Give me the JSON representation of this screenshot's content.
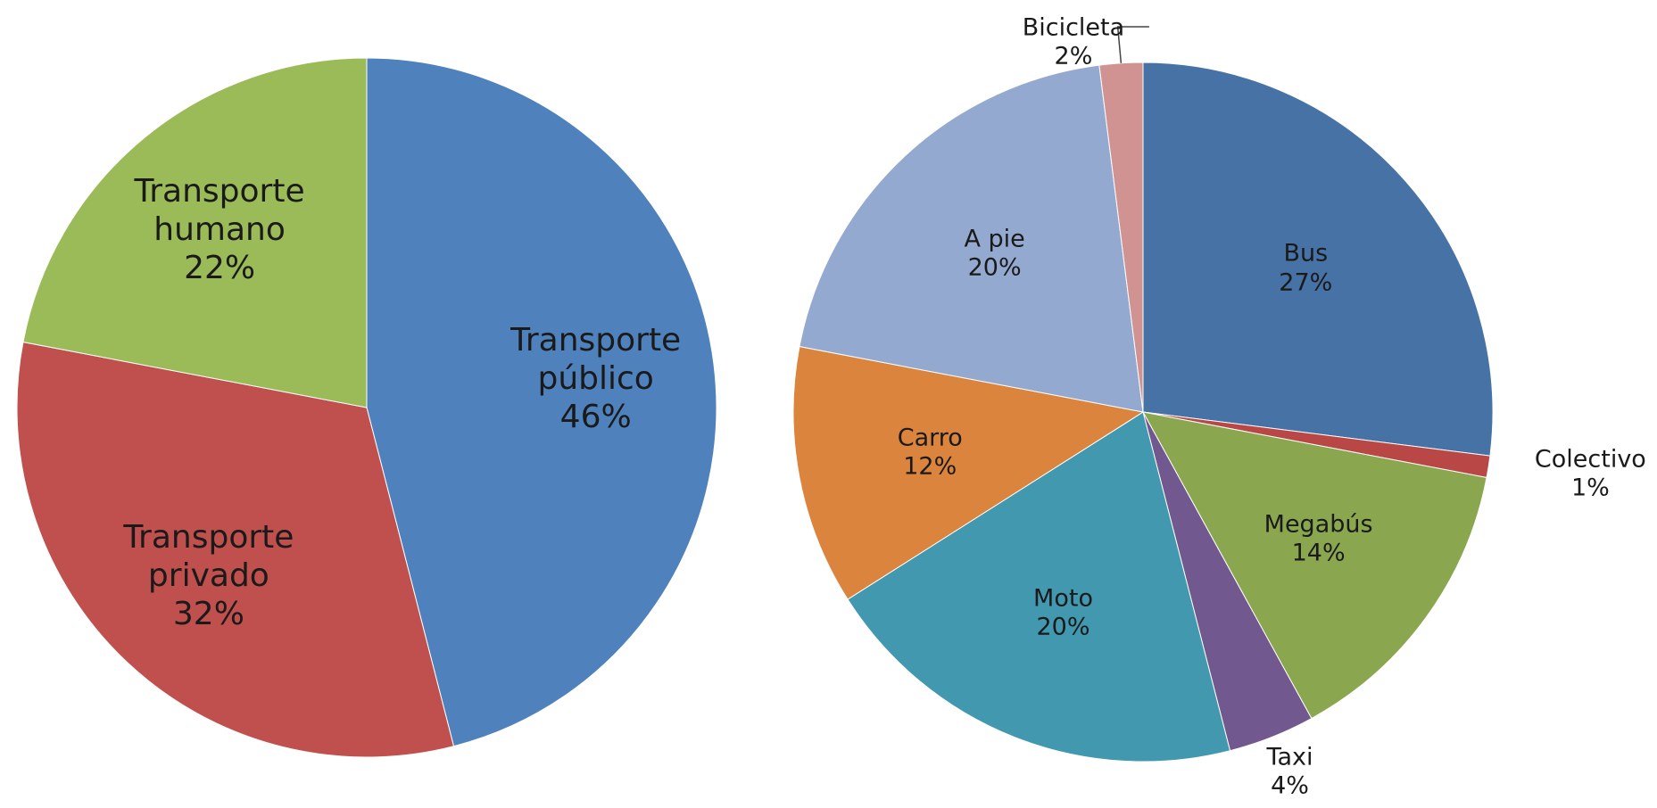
{
  "chart_data": [
    {
      "type": "pie",
      "categories": [
        "Transporte público",
        "Transporte privado",
        "Transporte humano"
      ],
      "values": [
        46,
        32,
        22
      ],
      "value_labels": [
        "46%",
        "32%",
        "22%"
      ],
      "colors": [
        "#4f81bd",
        "#c0504d",
        "#9bbb59"
      ]
    },
    {
      "type": "pie",
      "categories": [
        "Bus",
        "Colectivo",
        "Megabús",
        "Taxi",
        "Moto",
        "Carro",
        "A pie",
        "Bicicleta"
      ],
      "values": [
        27,
        1,
        14,
        4,
        20,
        12,
        20,
        2
      ],
      "value_labels": [
        "27%",
        "1%",
        "14%",
        "4%",
        "20%",
        "12%",
        "20%",
        "2%"
      ],
      "colors": [
        "#4672a6",
        "#b84745",
        "#8aa64f",
        "#71588f",
        "#4198af",
        "#db843d",
        "#93a9cf",
        "#d19392"
      ]
    }
  ]
}
